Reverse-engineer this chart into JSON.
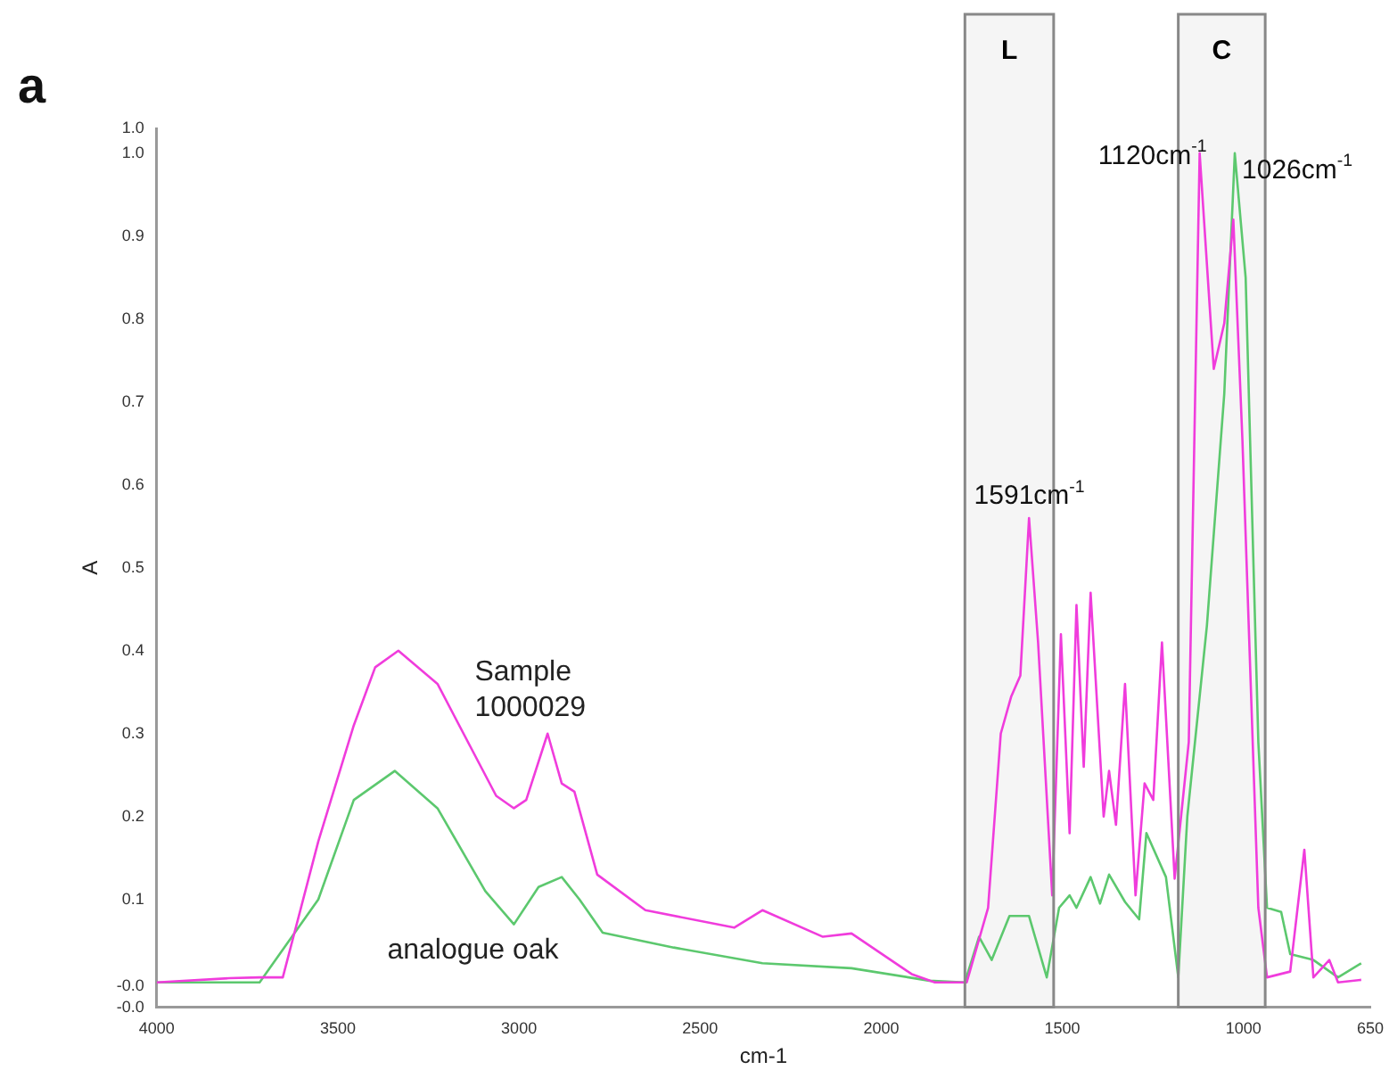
{
  "chart_data": {
    "type": "line",
    "xlabel": "cm-1",
    "ylabel": "A",
    "xlim": [
      4000,
      650
    ],
    "ylim": [
      -0.03,
      1.03
    ],
    "xticks": [
      4000,
      3500,
      3000,
      2500,
      2000,
      1500,
      1000,
      650
    ],
    "yticks": [
      {
        "value": -0.03,
        "label": "-0.0"
      },
      {
        "value": -0.005,
        "label": "-0.0"
      },
      0.1,
      0.2,
      0.3,
      0.4,
      0.5,
      0.6,
      0.7,
      0.8,
      0.9,
      {
        "value": 1.0,
        "label": "1.0"
      },
      {
        "value": 1.03,
        "label": "1.0"
      }
    ],
    "grid": false,
    "legend": false,
    "marker": "none",
    "line_style": "solid",
    "series": [
      {
        "name": "Sample 1000029",
        "color": "#f03cdc",
        "x": [
          4000,
          3800,
          3716,
          3652,
          3554,
          3456,
          3397,
          3333,
          3225,
          3063,
          3014,
          2980,
          2921,
          2882,
          2847,
          2784,
          2651,
          2406,
          2328,
          2161,
          2082,
          1916,
          1852,
          1764,
          1705,
          1670,
          1641,
          1616,
          1592,
          1567,
          1528,
          1504,
          1480,
          1461,
          1441,
          1422,
          1386,
          1371,
          1352,
          1327,
          1298,
          1273,
          1249,
          1225,
          1190,
          1151,
          1121,
          1082,
          1053,
          1028,
          1003,
          959,
          935,
          871,
          832,
          807,
          763,
          739,
          675
        ],
        "values": [
          0.0,
          0.005,
          0.006,
          0.006,
          0.17,
          0.31,
          0.38,
          0.4,
          0.36,
          0.225,
          0.21,
          0.22,
          0.3,
          0.24,
          0.23,
          0.13,
          0.087,
          0.066,
          0.087,
          0.055,
          0.059,
          0.01,
          0.0,
          0.0,
          0.09,
          0.3,
          0.345,
          0.37,
          0.56,
          0.41,
          0.105,
          0.42,
          0.18,
          0.455,
          0.26,
          0.47,
          0.2,
          0.255,
          0.19,
          0.36,
          0.105,
          0.24,
          0.22,
          0.41,
          0.125,
          0.29,
          1.0,
          0.74,
          0.795,
          0.92,
          0.655,
          0.09,
          0.006,
          0.013,
          0.16,
          0.006,
          0.027,
          0.0,
          0.003
        ]
      },
      {
        "name": "analogue oak",
        "color": "#5cc86e",
        "x": [
          4000,
          3800,
          3716,
          3554,
          3456,
          3343,
          3225,
          3093,
          3014,
          2946,
          2882,
          2833,
          2769,
          2573,
          2328,
          2082,
          1867,
          1769,
          1730,
          1695,
          1646,
          1592,
          1543,
          1509,
          1480,
          1461,
          1422,
          1396,
          1371,
          1327,
          1288,
          1268,
          1214,
          1180,
          1155,
          1101,
          1053,
          1024,
          994,
          959,
          935,
          896,
          871,
          807,
          739,
          675
        ],
        "values": [
          0.0,
          0.0,
          0.0,
          0.1,
          0.22,
          0.255,
          0.21,
          0.11,
          0.07,
          0.115,
          0.127,
          0.1,
          0.06,
          0.042,
          0.023,
          0.017,
          0.002,
          0.0,
          0.055,
          0.027,
          0.08,
          0.08,
          0.006,
          0.09,
          0.105,
          0.09,
          0.127,
          0.095,
          0.13,
          0.097,
          0.076,
          0.18,
          0.127,
          0.006,
          0.2,
          0.43,
          0.71,
          1.0,
          0.85,
          0.29,
          0.09,
          0.085,
          0.034,
          0.027,
          0.006,
          0.023
        ]
      }
    ],
    "bands": [
      {
        "axis": "x",
        "from": 1769,
        "to": 1524,
        "label": "L"
      },
      {
        "axis": "x",
        "from": 1180,
        "to": 940,
        "label": "C"
      }
    ],
    "annotations": [
      "a",
      {
        "text": "1591cm$^{-1}$",
        "x": 1591,
        "y": 0.56
      },
      {
        "text": "1120cm$^{-1}$",
        "x": 1121,
        "y": 1.0
      },
      {
        "text": "1026cm$^{-1}$",
        "x": 1024,
        "y": 1.0
      }
    ]
  }
}
